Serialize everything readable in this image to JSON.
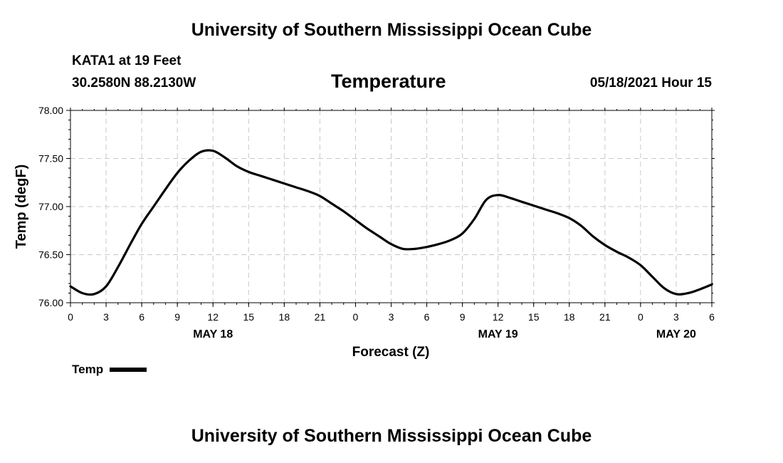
{
  "header": {
    "title": "University of Southern Mississippi Ocean Cube",
    "station": "KATA1 at 19 Feet",
    "coords": "30.2580N  88.2130W",
    "plot_title": "Temperature",
    "datetime": "05/18/2021 Hour 15"
  },
  "footer": {
    "title": "University of Southern Mississippi Ocean Cube"
  },
  "legend": {
    "label": "Temp"
  },
  "chart_data": {
    "type": "line",
    "title": "Temperature",
    "xlabel": "Forecast (Z)",
    "ylabel": "Temp (degF)",
    "x_unit": "hours since 00Z May 18",
    "xlim": [
      0,
      54
    ],
    "ylim": [
      76.0,
      78.0
    ],
    "yticks": [
      "76.00",
      "76.50",
      "77.00",
      "77.50",
      "78.00"
    ],
    "xtick_labels": [
      "0",
      "3",
      "6",
      "9",
      "12",
      "15",
      "18",
      "21",
      "0",
      "3",
      "6",
      "9",
      "12",
      "15",
      "18",
      "21",
      "0",
      "3",
      "6"
    ],
    "date_labels": [
      {
        "label": "MAY 18",
        "x": 12
      },
      {
        "label": "MAY 19",
        "x": 36
      },
      {
        "label": "MAY 20",
        "x": 51
      }
    ],
    "grid": true,
    "legend_position": "bottom-left",
    "series": [
      {
        "name": "Temp",
        "color": "#000000",
        "x": [
          0,
          1,
          2,
          3,
          4,
          5,
          6,
          7,
          8,
          9,
          10,
          11,
          12,
          13,
          14,
          15,
          16,
          17,
          18,
          19,
          20,
          21,
          22,
          23,
          24,
          25,
          26,
          27,
          28,
          29,
          30,
          31,
          32,
          33,
          34,
          35,
          36,
          37,
          38,
          39,
          40,
          41,
          42,
          43,
          44,
          45,
          46,
          47,
          48,
          49,
          50,
          51,
          52,
          53,
          54
        ],
        "y": [
          76.17,
          76.1,
          76.09,
          76.17,
          76.37,
          76.6,
          76.82,
          77.0,
          77.18,
          77.35,
          77.48,
          77.57,
          77.58,
          77.51,
          77.42,
          77.36,
          77.32,
          77.28,
          77.24,
          77.2,
          77.16,
          77.11,
          77.03,
          76.95,
          76.86,
          76.77,
          76.69,
          76.61,
          76.56,
          76.56,
          76.58,
          76.61,
          76.65,
          76.72,
          76.87,
          77.07,
          77.12,
          77.09,
          77.05,
          77.01,
          76.97,
          76.93,
          76.88,
          76.8,
          76.69,
          76.6,
          76.53,
          76.47,
          76.39,
          76.27,
          76.15,
          76.09,
          76.1,
          76.14,
          76.19
        ]
      }
    ]
  }
}
